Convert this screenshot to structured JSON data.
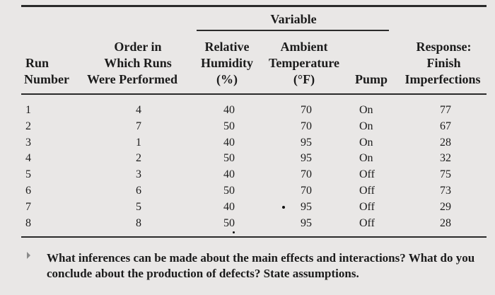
{
  "header": {
    "variable": "Variable",
    "col_run": [
      "Run",
      "Number"
    ],
    "col_order": [
      "Order in",
      "Which Runs",
      "Were Performed"
    ],
    "col_humidity": [
      "Relative",
      "Humidity",
      "(%)"
    ],
    "col_temp": [
      "Ambient",
      "Temperature",
      "(°F)"
    ],
    "col_pump": [
      "Pump"
    ],
    "col_response": [
      "Response:",
      "Finish",
      "Imperfections"
    ]
  },
  "rows": [
    {
      "run": "1",
      "order": "4",
      "humidity": "40",
      "temp": "70",
      "pump": "On",
      "response": "77"
    },
    {
      "run": "2",
      "order": "7",
      "humidity": "50",
      "temp": "70",
      "pump": "On",
      "response": "67"
    },
    {
      "run": "3",
      "order": "1",
      "humidity": "40",
      "temp": "95",
      "pump": "On",
      "response": "28"
    },
    {
      "run": "4",
      "order": "2",
      "humidity": "50",
      "temp": "95",
      "pump": "On",
      "response": "32"
    },
    {
      "run": "5",
      "order": "3",
      "humidity": "40",
      "temp": "70",
      "pump": "Off",
      "response": "75"
    },
    {
      "run": "6",
      "order": "6",
      "humidity": "50",
      "temp": "70",
      "pump": "Off",
      "response": "73"
    },
    {
      "run": "7",
      "order": "5",
      "humidity": "40",
      "temp": "95",
      "pump": "Off",
      "response": "29"
    },
    {
      "run": "8",
      "order": "8",
      "humidity": "50",
      "temp": "95",
      "pump": "Off",
      "response": "28"
    }
  ],
  "question": "What inferences can be made about the main effects and interactions? What do you conclude about the production of defects? State assumptions."
}
